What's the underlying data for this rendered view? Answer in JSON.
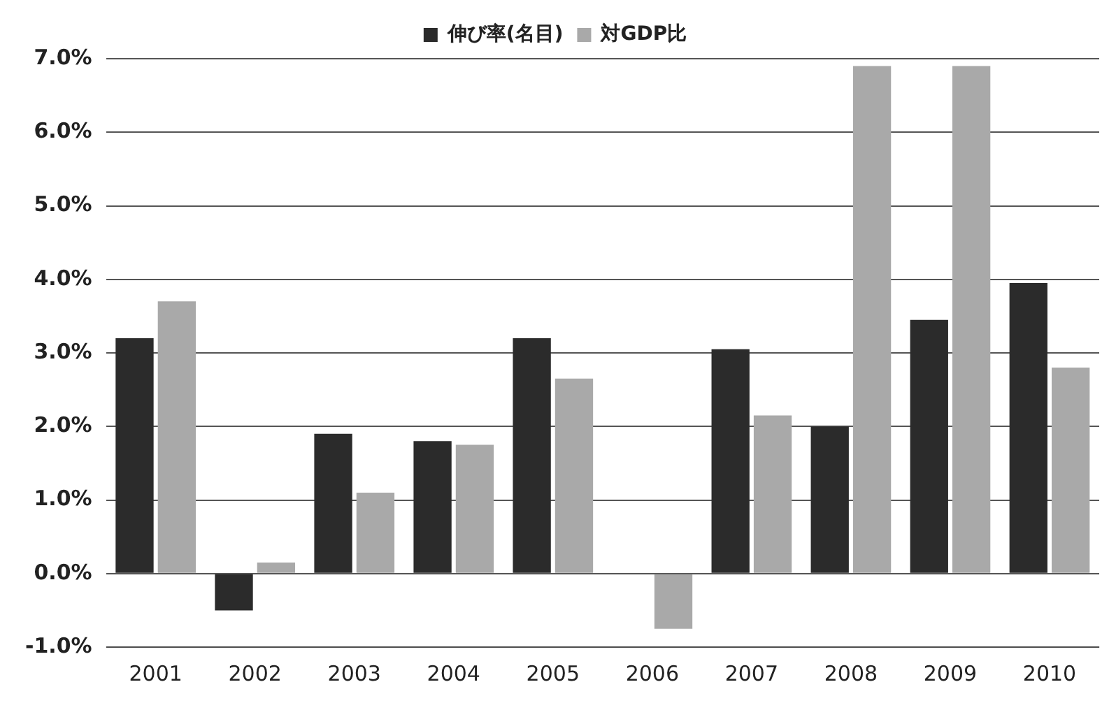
{
  "chart_data": {
    "type": "bar",
    "categories": [
      "2001",
      "2002",
      "2003",
      "2004",
      "2005",
      "2006",
      "2007",
      "2008",
      "2009",
      "2010"
    ],
    "series": [
      {
        "name": "伸び率(名目)",
        "color": "#2b2b2b",
        "values": [
          3.2,
          -0.5,
          1.9,
          1.8,
          3.2,
          null,
          3.05,
          2.0,
          3.45,
          3.95
        ]
      },
      {
        "name": "対GDP比",
        "color": "#a9a9a9",
        "values": [
          3.7,
          0.15,
          1.1,
          1.75,
          2.65,
          -0.75,
          2.15,
          6.9,
          6.9,
          2.8
        ]
      }
    ],
    "ylim": [
      -1,
      7
    ],
    "yticks": [
      {
        "value": -1,
        "label": "-1.0%"
      },
      {
        "value": 0,
        "label": "0.0%"
      },
      {
        "value": 1,
        "label": "1.0%"
      },
      {
        "value": 2,
        "label": "2.0%"
      },
      {
        "value": 3,
        "label": "3.0%"
      },
      {
        "value": 4,
        "label": "4.0%"
      },
      {
        "value": 5,
        "label": "5.0%"
      },
      {
        "value": 6,
        "label": "6.0%"
      },
      {
        "value": 7,
        "label": "7.0%"
      }
    ],
    "grid": "y",
    "legend": "top"
  }
}
